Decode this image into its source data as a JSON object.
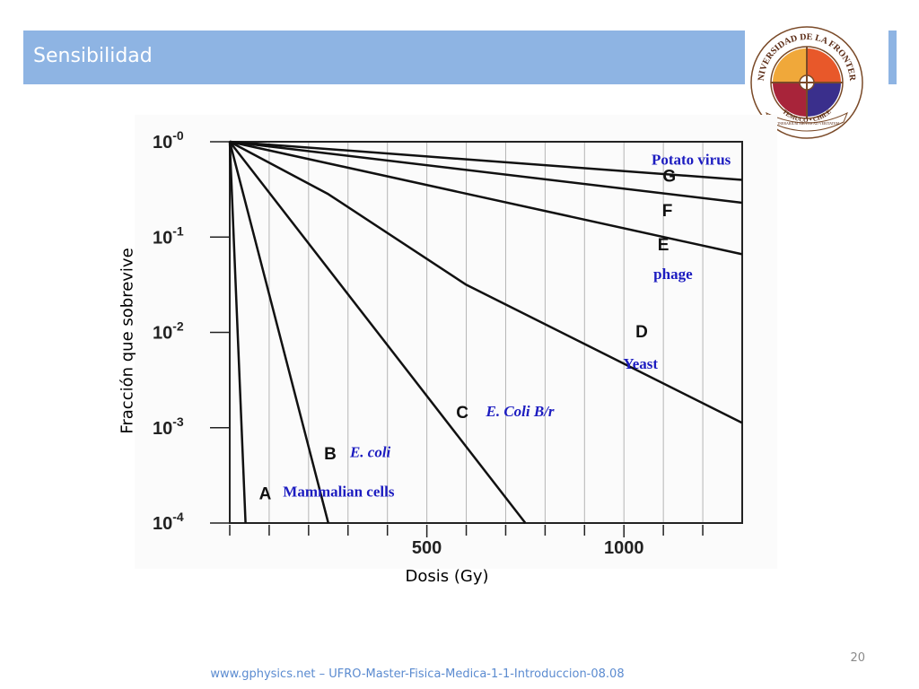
{
  "slide": {
    "title": "Sensibilidad",
    "page_number": "20",
    "footer": "www.gphysics.net – UFRO-Master-Fisica-Medica-1-1-Introduccion-08.08",
    "logo": {
      "top_text": "UNIVERSIDAD DE LA FRONTERA",
      "bottom_text": "TEMUCO • CHILE",
      "motto": "ITINERARIUM MENTIS AD VERITATEM"
    }
  },
  "colors": {
    "title_bar": "#8eb4e3",
    "label_blue": "#1c1cc0",
    "footer_blue": "#5b8bd0"
  },
  "chart_data": {
    "type": "line",
    "title": "",
    "xlabel": "Dosis (Gy)",
    "ylabel": "Fracción que sobrevive",
    "xlim": [
      0,
      1300
    ],
    "ylim_log10": [
      -4,
      0
    ],
    "y_scale": "log",
    "grid": true,
    "x_ticks": [
      {
        "value": 500,
        "label": "500"
      },
      {
        "value": 1000,
        "label": "1000"
      }
    ],
    "x_minor_ticks": [
      0,
      100,
      200,
      300,
      400,
      600,
      700,
      800,
      900,
      1100,
      1200
    ],
    "y_ticks": [
      {
        "exp": 0,
        "base": "10",
        "sup": "-0"
      },
      {
        "exp": -1,
        "base": "10",
        "sup": "-1"
      },
      {
        "exp": -2,
        "base": "10",
        "sup": "-2"
      },
      {
        "exp": -3,
        "base": "10",
        "sup": "-3"
      },
      {
        "exp": -4,
        "base": "10",
        "sup": "-4"
      }
    ],
    "series": [
      {
        "name": "A",
        "organism": "Mammalian cells",
        "italic": false,
        "points": [
          [
            0,
            0
          ],
          [
            40,
            -4
          ]
        ],
        "letter_at": [
          90,
          -3.75
        ],
        "org_at": [
          135,
          -3.72
        ]
      },
      {
        "name": "B",
        "organism": "E. coli",
        "italic": true,
        "points": [
          [
            0,
            0
          ],
          [
            250,
            -4
          ]
        ],
        "letter_at": [
          255,
          -3.33
        ],
        "org_at": [
          305,
          -3.31
        ]
      },
      {
        "name": "C",
        "organism": "E. Coli B/r",
        "italic": true,
        "points": [
          [
            0,
            0
          ],
          [
            750,
            -4
          ]
        ],
        "letter_at": [
          590,
          -2.9
        ],
        "org_at": [
          650,
          -2.88
        ]
      },
      {
        "name": "D",
        "organism": "Yeast",
        "italic": false,
        "points": [
          [
            0,
            0
          ],
          [
            250,
            -0.55
          ],
          [
            600,
            -1.5
          ],
          [
            1300,
            -2.95
          ]
        ],
        "letter_at": [
          1045,
          -2.05
        ],
        "org_at": [
          998,
          -2.38
        ]
      },
      {
        "name": "E",
        "organism": "phage",
        "italic": false,
        "points": [
          [
            0,
            0
          ],
          [
            1300,
            -1.18
          ]
        ],
        "letter_at": [
          1100,
          -1.14
        ],
        "org_at": [
          1075,
          -1.44
        ]
      },
      {
        "name": "F",
        "organism": "",
        "italic": false,
        "points": [
          [
            0,
            0
          ],
          [
            1300,
            -0.64
          ]
        ],
        "letter_at": [
          1110,
          -0.78
        ],
        "org_at": null
      },
      {
        "name": "G",
        "organism": "Potato virus",
        "italic": false,
        "points": [
          [
            0,
            0
          ],
          [
            1300,
            -0.4
          ]
        ],
        "letter_at": [
          1115,
          -0.42
        ],
        "org_at": [
          1070,
          -0.24
        ]
      }
    ]
  }
}
